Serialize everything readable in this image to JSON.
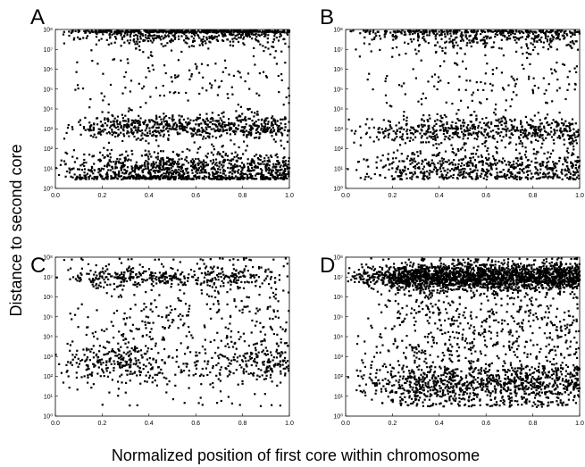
{
  "figure": {
    "ylabel": "Distance to second core",
    "xlabel": "Normalized position of first core within chromosome"
  },
  "chart_data": [
    {
      "panel": "A",
      "type": "scatter",
      "xlim": [
        0.0,
        1.0
      ],
      "ylim": [
        1,
        100000000
      ],
      "yscale": "log",
      "x_ticks": [
        "0.0",
        "0.2",
        "0.4",
        "0.6",
        "0.8",
        "1.0"
      ],
      "y_ticks": [
        "10⁰",
        "10¹",
        "10²",
        "10³",
        "10⁴",
        "10⁵",
        "10⁶",
        "10⁷",
        "10⁸"
      ],
      "bands": [
        {
          "center_log10": 7.9,
          "spread": 0.35,
          "count": 700,
          "density": [
            0.0,
            1.0,
            1.0,
            1.0
          ]
        },
        {
          "center_log10": 3.1,
          "spread": 0.3,
          "count": 650,
          "density": [
            0.0,
            1.0,
            1.0,
            1.0
          ]
        },
        {
          "center_log10": 1.0,
          "spread": 0.45,
          "count": 900,
          "density": [
            0.0,
            1.0,
            1.0,
            1.0
          ]
        },
        {
          "center_log10": 0.5,
          "spread": 0.08,
          "count": 250,
          "density": [
            0.0,
            1.0,
            1.0,
            1.0
          ]
        },
        {
          "center_log10": 5.2,
          "spread": 1.4,
          "count": 180,
          "density": [
            0.0,
            1.0,
            1.0,
            1.0
          ]
        }
      ]
    },
    {
      "panel": "B",
      "type": "scatter",
      "xlim": [
        0.0,
        1.0
      ],
      "ylim": [
        1,
        100000000
      ],
      "yscale": "log",
      "x_ticks": [
        "0.0",
        "0.2",
        "0.4",
        "0.6",
        "0.8",
        "1.0"
      ],
      "y_ticks": [
        "10⁰",
        "10¹",
        "10²",
        "10³",
        "10⁴",
        "10⁵",
        "10⁶",
        "10⁷",
        "10⁸"
      ],
      "bands": [
        {
          "center_log10": 7.8,
          "spread": 0.4,
          "count": 500,
          "density": [
            0.0,
            1.0,
            1.0,
            1.0
          ]
        },
        {
          "center_log10": 2.9,
          "spread": 0.35,
          "count": 550,
          "density": [
            0.0,
            1.0,
            1.0,
            1.0
          ]
        },
        {
          "center_log10": 1.0,
          "spread": 0.45,
          "count": 650,
          "density": [
            0.0,
            1.0,
            1.0,
            1.0
          ]
        },
        {
          "center_log10": 5.0,
          "spread": 1.5,
          "count": 200,
          "density": [
            0.0,
            1.0,
            1.0,
            1.0
          ]
        }
      ]
    },
    {
      "panel": "C",
      "type": "scatter",
      "xlim": [
        0.0,
        1.0
      ],
      "ylim": [
        1,
        100000000
      ],
      "yscale": "log",
      "x_ticks": [
        "0.0",
        "0.2",
        "0.4",
        "0.6",
        "0.8",
        "1.0"
      ],
      "y_ticks": [
        "10⁰",
        "10¹",
        "10²",
        "10³",
        "10⁴",
        "10⁵",
        "10⁶",
        "10⁷",
        "10⁸"
      ],
      "bands": [
        {
          "center_log10": 7.0,
          "spread": 0.25,
          "count": 380,
          "density": [
            0.0,
            1.0,
            1.0,
            0.6,
            0.95,
            0.15
          ]
        },
        {
          "center_log10": 2.7,
          "spread": 0.5,
          "count": 420,
          "density": [
            0.0,
            1.0,
            0.9,
            0.15,
            0.2,
            0.75,
            1.0
          ]
        },
        {
          "center_log10": 4.5,
          "spread": 2.0,
          "count": 450,
          "density": [
            0.0,
            1.0,
            1.0,
            1.0
          ]
        }
      ]
    },
    {
      "panel": "D",
      "type": "scatter",
      "xlim": [
        0.0,
        1.0
      ],
      "ylim": [
        1,
        100000000
      ],
      "yscale": "log",
      "x_ticks": [
        "0.0",
        "0.2",
        "0.4",
        "0.6",
        "0.8",
        "1.0"
      ],
      "y_ticks": [
        "10⁰",
        "10¹",
        "10²",
        "10³",
        "10⁴",
        "10⁵",
        "10⁶",
        "10⁷",
        "10⁸"
      ],
      "bands": [
        {
          "center_log10": 7.0,
          "spread": 0.35,
          "count": 2200,
          "density": [
            0.0,
            1.0,
            1.0,
            1.0
          ]
        },
        {
          "center_log10": 1.6,
          "spread": 0.55,
          "count": 1000,
          "density": [
            0.0,
            1.0,
            1.0,
            1.0
          ]
        },
        {
          "center_log10": 4.3,
          "spread": 1.6,
          "count": 700,
          "density": [
            0.0,
            1.0,
            1.0,
            1.0
          ]
        }
      ]
    }
  ]
}
